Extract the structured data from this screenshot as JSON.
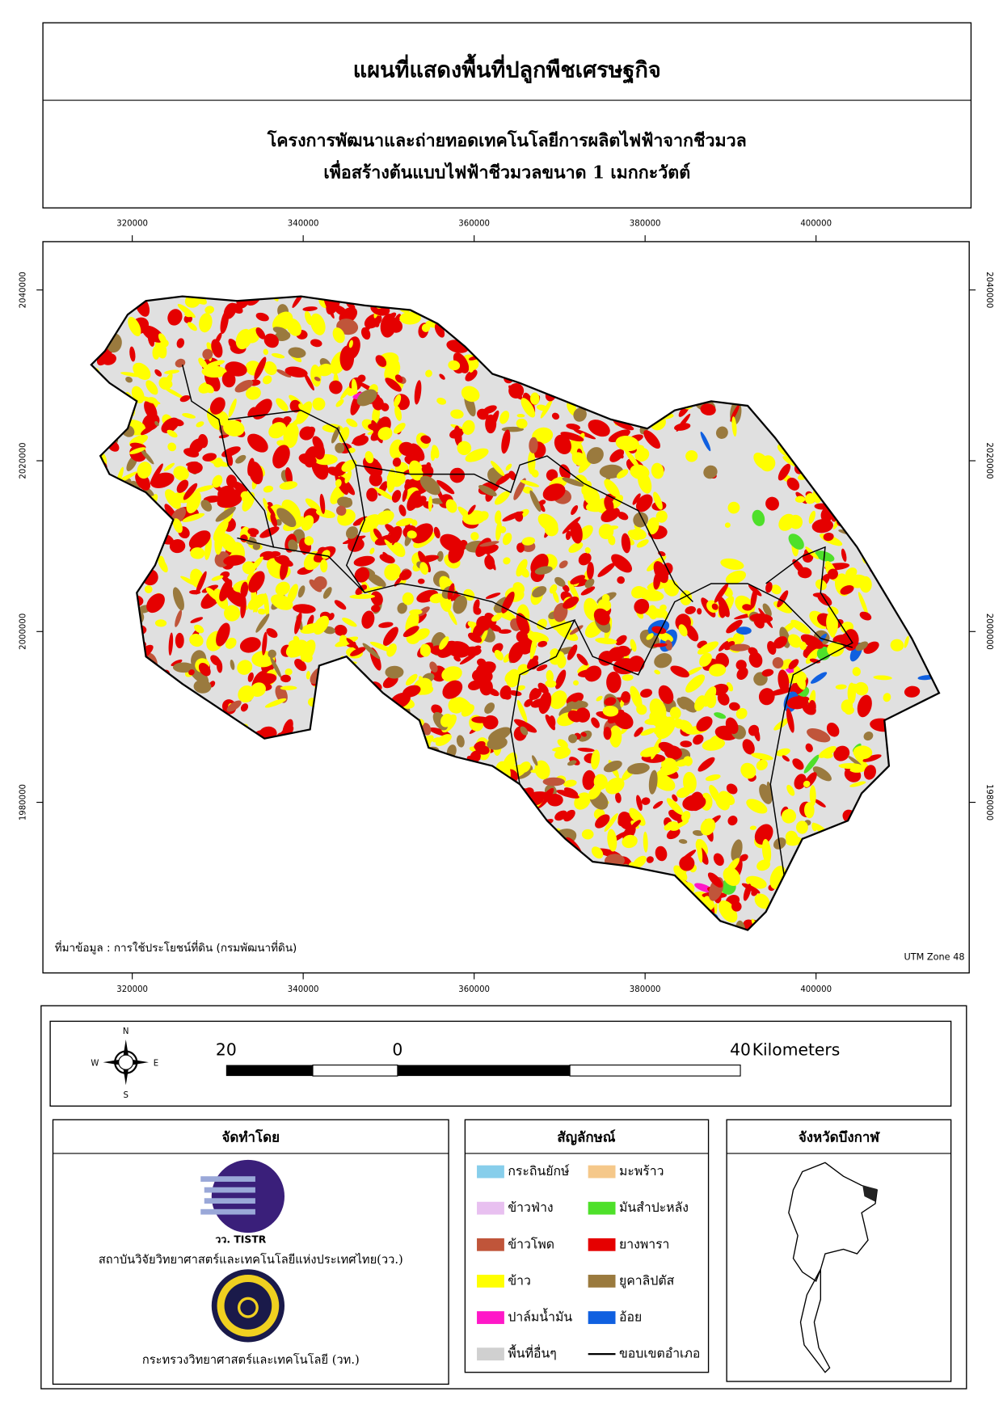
{
  "header": {
    "title": "แผนที่แสดงพื้นที่ปลูกพืชเศรษฐกิจ",
    "subtitle": [
      "โครงการพัฒนาและถ่ายทอดเทคโนโลยีการผลิตไฟฟ้าจากชีวมวล",
      "เพื่อสร้างต้นแบบไฟฟ้าชีวมวลขนาด 1 เมกกะวัตต์"
    ]
  },
  "map": {
    "x_ticks": [
      320000,
      340000,
      360000,
      380000,
      400000
    ],
    "y_ticks": [
      2040000,
      2020000,
      2000000,
      1980000
    ],
    "source": "ที่มาข้อมูล : การใช้ประโยชน์ที่ดิน  (กรมพัฒนาที่ดิน)",
    "projection": "UTM Zone 48"
  },
  "compass": [
    "N",
    "E",
    "S",
    "W"
  ],
  "scale_bar": {
    "labels": [
      20,
      0,
      40
    ],
    "unit": "Kilometers"
  },
  "credits": {
    "title": "จัดทำโดย",
    "logo_text": "วว. TISTR",
    "institute": "สถาบันวิจัยวิทยาศาสตร์และเทคโนโลยีแห่งประเทศไทย(วว.)",
    "ministry": "กระทรวงวิทยาศาสตร์และเทคโนโลยี (วท.)"
  },
  "legend": {
    "title": "สัญลักษณ์",
    "items": [
      {
        "label": "กระถินยักษ์",
        "color": "#87ceeb"
      },
      {
        "label": "มะพร้าว",
        "color": "#f5c88a"
      },
      {
        "label": "ข้าวฟ่าง",
        "color": "#e8c0f0"
      },
      {
        "label": "มันสำปะหลัง",
        "color": "#4ee02a"
      },
      {
        "label": "ข้าวโพด",
        "color": "#c0553a"
      },
      {
        "label": "ยางพารา",
        "color": "#e50000"
      },
      {
        "label": "ข้าว",
        "color": "#ffff00"
      },
      {
        "label": "ยูคาลิปตัส",
        "color": "#9a7a3e"
      },
      {
        "label": "ปาล์มน้ำมัน",
        "color": "#ff18c8"
      },
      {
        "label": "อ้อย",
        "color": "#1060e0"
      },
      {
        "label": "พื้นที่อื่นๆ",
        "color": "#d0d0d0"
      },
      {
        "label": "ขอบเขตอำเภอ",
        "color": "#000000"
      }
    ]
  },
  "inset": {
    "title": "จังหวัดบึงกาฬ"
  }
}
